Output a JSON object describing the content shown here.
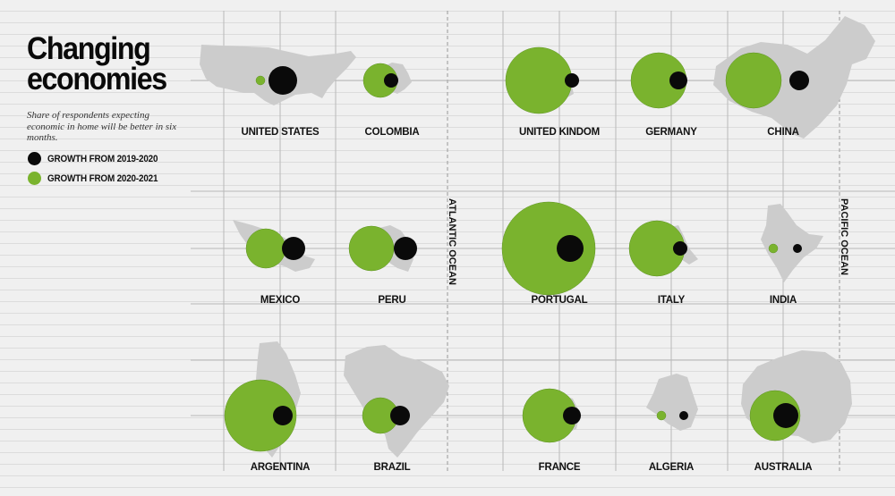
{
  "title": "Changing economies",
  "subtitle": "Share of respondents expecting economic in home will be better in six months.",
  "legend": [
    {
      "label": "GROWTH FROM 2019-2020",
      "color": "#0a0a0a"
    },
    {
      "label": "GROWTH FROM 2020-2021",
      "color": "#7ab32e"
    }
  ],
  "oceans": [
    "ATLANTIC OCEAN",
    "PACIFIC OCEAN"
  ],
  "colors": {
    "green": "#7ab32e",
    "black": "#0a0a0a",
    "map": "#cccccc",
    "grid": "#b8b8b8"
  },
  "chart_data": {
    "type": "bubble",
    "series": [
      {
        "name": "GROWTH FROM 2019-2020",
        "color": "#0a0a0a"
      },
      {
        "name": "GROWTH FROM 2020-2021",
        "color": "#7ab32e"
      }
    ],
    "countries": [
      {
        "name": "UNITED STATES",
        "growth_2019_2020": 16,
        "growth_2020_2021": 5
      },
      {
        "name": "COLOMBIA",
        "growth_2019_2020": 8,
        "growth_2020_2021": 19
      },
      {
        "name": "UNITED KINDOM",
        "growth_2019_2020": 8,
        "growth_2020_2021": 37
      },
      {
        "name": "GERMANY",
        "growth_2019_2020": 10,
        "growth_2020_2021": 31
      },
      {
        "name": "CHINA",
        "growth_2019_2020": 11,
        "growth_2020_2021": 31
      },
      {
        "name": "MEXICO",
        "growth_2019_2020": 13,
        "growth_2020_2021": 22
      },
      {
        "name": "PERU",
        "growth_2019_2020": 13,
        "growth_2020_2021": 25
      },
      {
        "name": "PORTUGAL",
        "growth_2019_2020": 15,
        "growth_2020_2021": 52
      },
      {
        "name": "ITALY",
        "growth_2019_2020": 8,
        "growth_2020_2021": 31
      },
      {
        "name": "INDIA",
        "growth_2019_2020": 5,
        "growth_2020_2021": 5
      },
      {
        "name": "ARGENTINA",
        "growth_2019_2020": 11,
        "growth_2020_2021": 40
      },
      {
        "name": "BRAZIL",
        "growth_2019_2020": 11,
        "growth_2020_2021": 20
      },
      {
        "name": "FRANCE",
        "growth_2019_2020": 10,
        "growth_2020_2021": 30
      },
      {
        "name": "ALGERIA",
        "growth_2019_2020": 5,
        "growth_2020_2021": 5
      },
      {
        "name": "AUSTRALIA",
        "growth_2019_2020": 14,
        "growth_2020_2021": 28
      }
    ]
  }
}
